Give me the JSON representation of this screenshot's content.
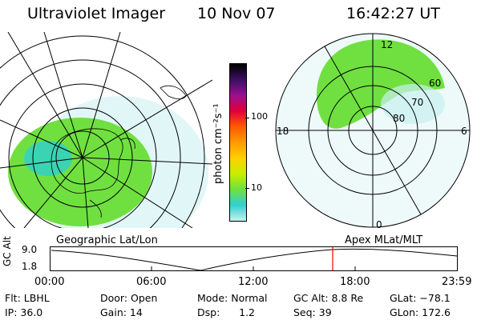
{
  "header": {
    "instrument": "Ultraviolet Imager",
    "date": "10 Nov 07",
    "time": "16:42:27 UT"
  },
  "colorbar": {
    "unit_label": "photon cm⁻²s⁻¹",
    "tick_100": "100",
    "tick_10": "10",
    "colors": [
      "#000000",
      "#3a1060",
      "#9a1090",
      "#e0003a",
      "#ff5a00",
      "#ff9a00",
      "#ffd000",
      "#c8ef00",
      "#70e040",
      "#30d0d0",
      "#c8f0f0"
    ]
  },
  "maps": {
    "left_label": "Geographic Lat/Lon",
    "right_label": "Apex  MLat/MLT",
    "right_ticks": {
      "top": "12",
      "left": "18",
      "right": "6",
      "bottom": "0",
      "lat60": "60",
      "lat70": "70",
      "lat80": "80"
    },
    "aurora_color": "#70e040",
    "haze_color": "#c8f0f0"
  },
  "timeline": {
    "axis_label": "GC Alt",
    "y_top": "9.0",
    "y_bottom": "1.8",
    "x_ticks": [
      "00:00",
      "06:00",
      "12:00",
      "18:00",
      "23:59"
    ],
    "current_marker_color": "#ff0000"
  },
  "info": {
    "flt": "Flt: LBHL",
    "ip": "IP: 36.0",
    "door": "Door: Open",
    "gain": "Gain: 14",
    "mode": "Mode: Normal",
    "dsp": "Dsp:      1.2",
    "gcalt": "GC Alt: 8.8 Re",
    "seq": "Seq: 39",
    "glat": "GLat: −78.1",
    "glon": "GLon: 172.6"
  }
}
